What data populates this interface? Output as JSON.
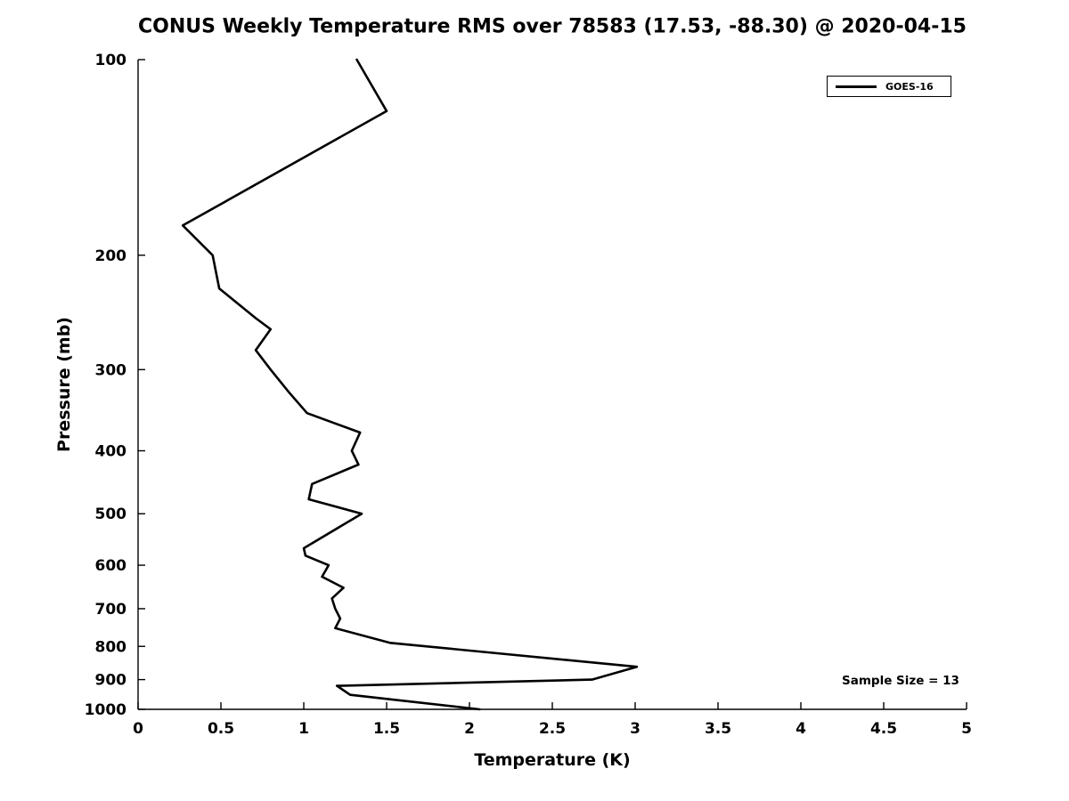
{
  "chart_data": {
    "type": "line",
    "title": "CONUS Weekly Temperature RMS over 78583 (17.53, -88.30) @ 2020-04-15",
    "xlabel": "Temperature (K)",
    "ylabel": "Pressure (mb)",
    "xlim": [
      0,
      5
    ],
    "ylim": [
      100,
      1000
    ],
    "y_scale": "log",
    "y_inverted": true,
    "grid": false,
    "x_ticks": [
      0,
      0.5,
      1,
      1.5,
      2,
      2.5,
      3,
      3.5,
      4,
      4.5,
      5
    ],
    "y_ticks": [
      100,
      200,
      300,
      400,
      500,
      600,
      700,
      800,
      900,
      1000
    ],
    "line_color": "#000000",
    "background_color": "#ffffff",
    "legend": {
      "position": "top-right",
      "entries": [
        {
          "label": "GOES-16",
          "color": "#000000"
        }
      ]
    },
    "annotation": "Sample Size = 13",
    "series": [
      {
        "name": "GOES-16",
        "color": "#000000",
        "pressure_mb": [
          100,
          120,
          180,
          200,
          225,
          250,
          260,
          280,
          300,
          325,
          350,
          375,
          400,
          420,
          450,
          475,
          500,
          565,
          580,
          600,
          625,
          650,
          675,
          700,
          725,
          750,
          790,
          860,
          900,
          920,
          950,
          1000
        ],
        "rms_k": [
          1.32,
          1.5,
          0.27,
          0.45,
          0.49,
          0.71,
          0.8,
          0.71,
          0.8,
          0.91,
          1.02,
          1.34,
          1.29,
          1.33,
          1.05,
          1.03,
          1.35,
          1.0,
          1.01,
          1.15,
          1.11,
          1.24,
          1.17,
          1.19,
          1.22,
          1.19,
          1.52,
          3.01,
          2.74,
          1.2,
          1.28,
          2.06
        ]
      }
    ]
  }
}
